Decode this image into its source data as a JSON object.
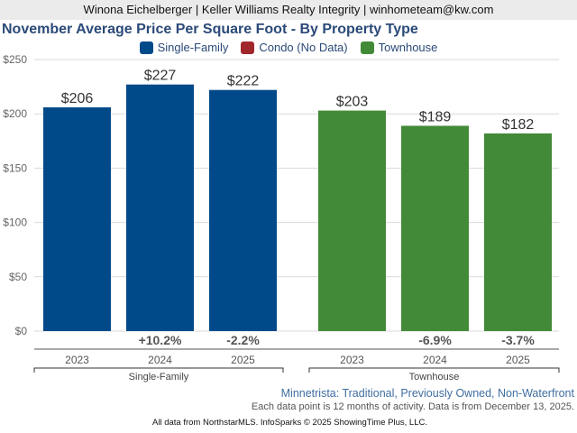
{
  "header": {
    "agent_line": "Winona Eichelberger | Keller Williams Realty Integrity | winhometeam@kw.com"
  },
  "chart_data": {
    "type": "bar",
    "title": "November Average Price Per Square Foot - By Property Type",
    "ylim": [
      0,
      250
    ],
    "yticks": [
      0,
      50,
      100,
      150,
      200,
      250
    ],
    "ytick_labels": [
      "$0",
      "$50",
      "$100",
      "$150",
      "$200",
      "$250"
    ],
    "grid": true,
    "legend_position": "top-center",
    "legend": [
      {
        "name": "Single-Family",
        "color": "#004a89"
      },
      {
        "name": "Condo (No Data)",
        "color": "#a0282d"
      },
      {
        "name": "Townhouse",
        "color": "#438a38"
      }
    ],
    "groups": [
      {
        "name": "Single-Family",
        "color": "#004a89",
        "categories": [
          "2023",
          "2024",
          "2025"
        ],
        "values": [
          206,
          227,
          222
        ],
        "value_labels": [
          "$206",
          "$227",
          "$222"
        ],
        "pct_change": [
          "",
          "+10.2%",
          "-2.2%"
        ]
      },
      {
        "name": "Townhouse",
        "color": "#438a38",
        "categories": [
          "2023",
          "2024",
          "2025"
        ],
        "values": [
          203,
          189,
          182
        ],
        "value_labels": [
          "$203",
          "$189",
          "$182"
        ],
        "pct_change": [
          "",
          "-6.9%",
          "-3.7%"
        ]
      }
    ]
  },
  "subtitle": "Minnetrista: Traditional, Previously Owned, Non-Waterfront",
  "note": "Each data point is 12 months of activity. Data is from December 13, 2025.",
  "footer": "All data from NorthstarMLS. InfoSparks © 2025 ShowingTime Plus, LLC."
}
